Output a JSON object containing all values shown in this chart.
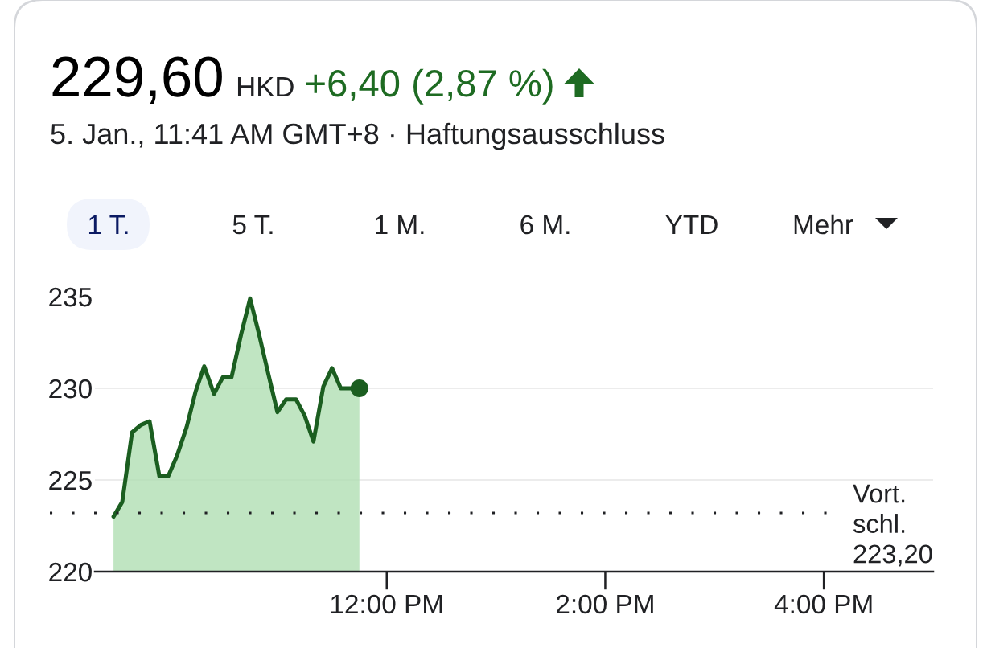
{
  "chart_data": {
    "type": "area",
    "title": "229,60",
    "subtitle": "5. Jan., 11:41 AM GMT+8 · Haftungsausschluss",
    "annotations": [
      "HKD",
      "+6,40 (2,87 %)",
      "1 T.",
      "5 T.",
      "1 M.",
      "6 M.",
      "YTD",
      "Mehr"
    ],
    "series": [
      {
        "color": "#1b5e20",
        "x": [
          9.5,
          9.58,
          9.67,
          9.75,
          9.83,
          9.92,
          10.0,
          10.08,
          10.17,
          10.25,
          10.33,
          10.42,
          10.5,
          10.58,
          10.67,
          10.75,
          10.83,
          10.92,
          11.0,
          11.08,
          11.17,
          11.25,
          11.33,
          11.42,
          11.5,
          11.58,
          11.67,
          11.75
        ],
        "values": [
          223.0,
          223.8,
          227.6,
          228.0,
          228.2,
          225.2,
          225.2,
          226.3,
          227.9,
          229.8,
          231.2,
          229.7,
          230.6,
          230.6,
          233.0,
          234.9,
          233.0,
          230.7,
          228.7,
          229.4,
          229.4,
          228.5,
          227.1,
          230.1,
          231.1,
          230.0,
          230.0,
          230.0
        ]
      },
      {
        "type": "scatter",
        "color": "#1b5e20",
        "x": [
          11.75
        ],
        "values": [
          230.0
        ]
      }
    ],
    "xlim": [
      9.33,
      17.0
    ],
    "xticks": [
      {
        "value": 12,
        "label": "12:00 PM"
      },
      {
        "value": 14,
        "label": "2:00 PM"
      },
      {
        "value": 16,
        "label": "4:00 PM"
      }
    ],
    "ylim": [
      220,
      235
    ],
    "yticks": [
      220,
      225,
      230,
      235
    ],
    "grid": "y",
    "ref_lines": [
      {
        "axis": "y",
        "value": 223.2,
        "label": "Vort. schl. 223,20",
        "line_style": "dotted",
        "color": "#202124"
      }
    ]
  }
}
